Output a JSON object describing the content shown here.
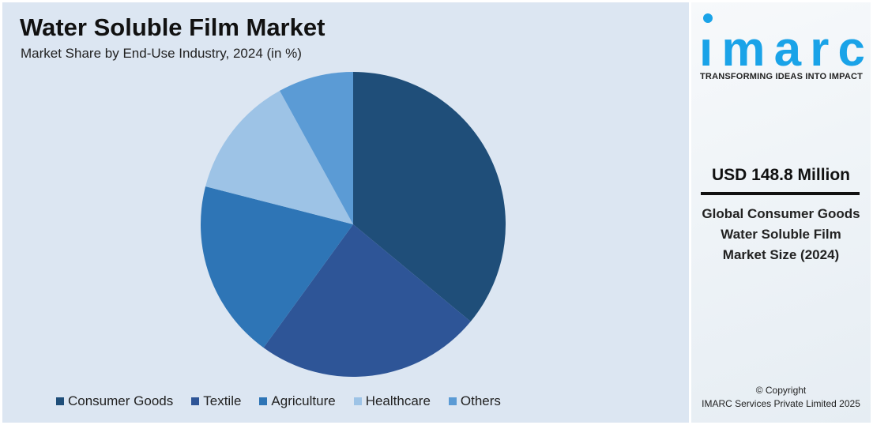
{
  "title": "Water Soluble Film Market",
  "subtitle": "Market Share by End-Use Industry, 2024 (in %)",
  "chart_data": {
    "type": "pie",
    "title": "Water Soluble Film Market",
    "subtitle": "Market Share by End-Use Industry, 2024 (in %)",
    "categories": [
      "Consumer Goods",
      "Textile",
      "Agriculture",
      "Healthcare",
      "Others"
    ],
    "values": [
      36,
      24,
      19,
      13,
      8
    ],
    "colors": [
      "#1f4e79",
      "#2e5597",
      "#2e75b6",
      "#9dc3e6",
      "#5b9bd5"
    ],
    "start": "12 o'clock, clockwise",
    "legend": "bottom"
  },
  "side": {
    "logo": "imarc",
    "tagline": "TRANSFORMING IDEAS INTO IMPACT",
    "value": "USD 148.8 Million",
    "description": "Global Consumer Goods Water Soluble Film Market Size (2024)",
    "copyright_line1": "© Copyright",
    "copyright_line2": "IMARC Services Private Limited 2025",
    "brand_color": "#1aa3e8"
  }
}
